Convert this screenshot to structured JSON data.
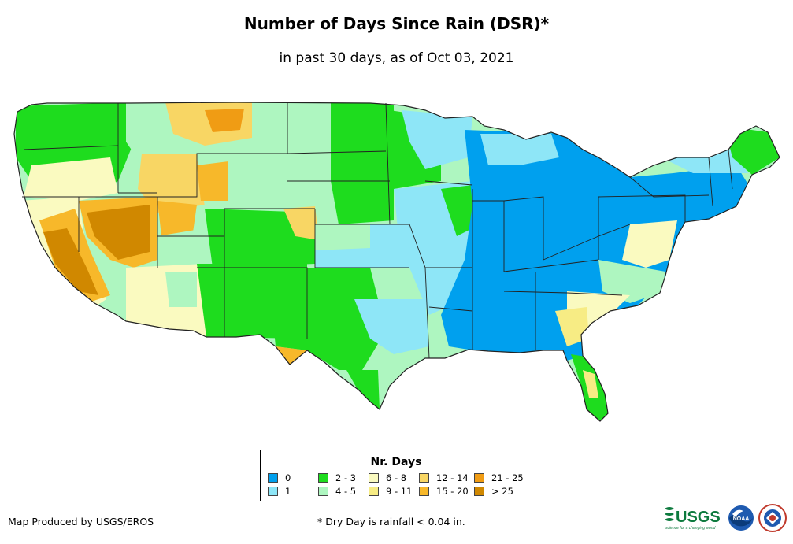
{
  "title": "Number of Days Since Rain (DSR)*",
  "subtitle": "in past 30 days, as of Oct 03, 2021",
  "legend": {
    "title": "Nr. Days",
    "items": [
      {
        "label": "0",
        "color": "#00a0ee"
      },
      {
        "label": "1",
        "color": "#8ee6f7"
      },
      {
        "label": "2 - 3",
        "color": "#1edc1e"
      },
      {
        "label": "4 - 5",
        "color": "#aef6c0"
      },
      {
        "label": "6 - 8",
        "color": "#fafac0"
      },
      {
        "label": "9 - 11",
        "color": "#f7ec84"
      },
      {
        "label": "12 - 14",
        "color": "#f8d664"
      },
      {
        "label": "15 - 20",
        "color": "#f7b82a"
      },
      {
        "label": "21 - 25",
        "color": "#f09c14"
      },
      {
        "label": "> 25",
        "color": "#d08800"
      }
    ]
  },
  "credit": "Map Produced by USGS/EROS",
  "footnote": "* Dry Day is rainfall < 0.04 in.",
  "logos": {
    "usgs": "USGS",
    "usgs_tagline": "science for a changing world",
    "noaa": "NOAA",
    "nws": "National Weather Service"
  }
}
